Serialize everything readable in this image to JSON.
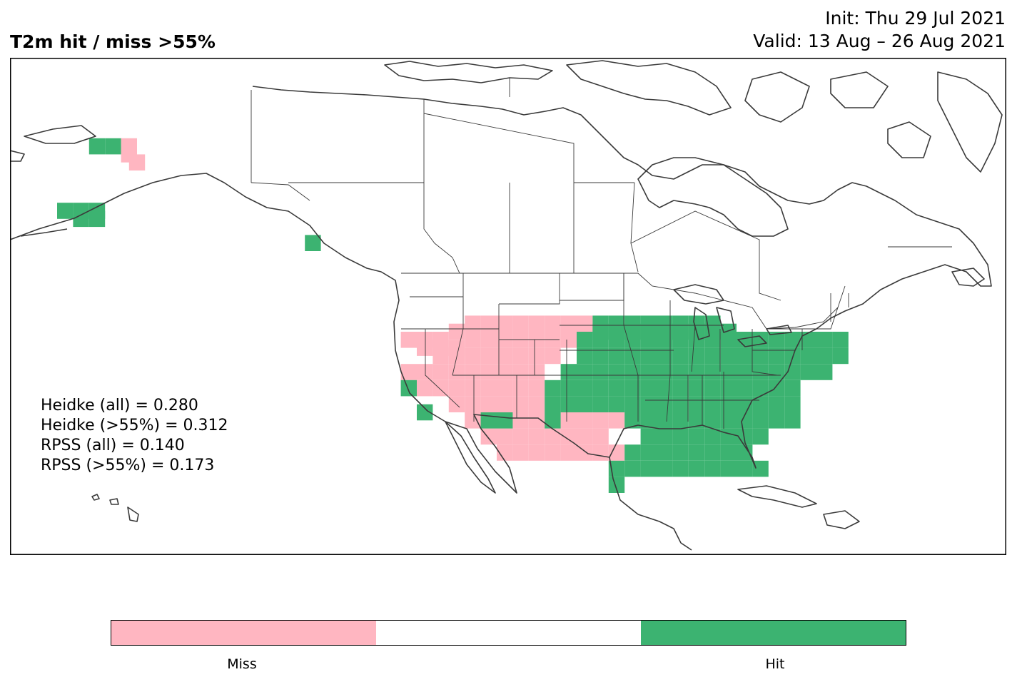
{
  "title": "T2m hit / miss  >55%",
  "init": "Init: Thu 29 Jul 2021",
  "valid": "Valid: 13 Aug – 26 Aug 2021",
  "stats": [
    "Heidke (all) = 0.280",
    "Heidke (>55%) = 0.312",
    "RPSS (all) = 0.140",
    "RPSS (>55%) = 0.173"
  ],
  "colorbar": {
    "segments": [
      {
        "label": "Miss",
        "color": "#ffb6c1"
      },
      {
        "label": "",
        "color": "#ffffff"
      },
      {
        "label": "Hit",
        "color": "#3cb371"
      }
    ]
  },
  "colors": {
    "miss": "#ffb6c1",
    "hit": "#3cb371",
    "coast": "#3a3a3a"
  },
  "grid_cells": {
    "miss": [
      [
        -158,
        70
      ],
      [
        -158,
        69
      ],
      [
        -157,
        68
      ],
      [
        -123,
        46
      ],
      [
        -121,
        46
      ],
      [
        -119,
        46
      ],
      [
        -117,
        47
      ],
      [
        -115,
        48
      ],
      [
        -113,
        48
      ],
      [
        -111,
        48
      ],
      [
        -109,
        48
      ],
      [
        -107,
        48
      ],
      [
        -105,
        48
      ],
      [
        -103,
        48
      ],
      [
        -101,
        48
      ],
      [
        -121,
        45
      ],
      [
        -119,
        45
      ],
      [
        -117,
        45
      ],
      [
        -115,
        46
      ],
      [
        -113,
        46
      ],
      [
        -111,
        46
      ],
      [
        -109,
        46
      ],
      [
        -107,
        46
      ],
      [
        -105,
        46
      ],
      [
        -103,
        46
      ],
      [
        -119,
        44
      ],
      [
        -117,
        44
      ],
      [
        -115,
        44
      ],
      [
        -113,
        44
      ],
      [
        -111,
        44
      ],
      [
        -109,
        44
      ],
      [
        -107,
        44
      ],
      [
        -105,
        44
      ],
      [
        -123,
        42
      ],
      [
        -121,
        42
      ],
      [
        -119,
        42
      ],
      [
        -117,
        42
      ],
      [
        -115,
        42
      ],
      [
        -113,
        42
      ],
      [
        -111,
        42
      ],
      [
        -109,
        42
      ],
      [
        -107,
        42
      ],
      [
        -121,
        40
      ],
      [
        -119,
        40
      ],
      [
        -117,
        40
      ],
      [
        -115,
        40
      ],
      [
        -113,
        40
      ],
      [
        -111,
        40
      ],
      [
        -109,
        40
      ],
      [
        -107,
        40
      ],
      [
        -117,
        38
      ],
      [
        -115,
        38
      ],
      [
        -113,
        38
      ],
      [
        -111,
        38
      ],
      [
        -109,
        38
      ],
      [
        -107,
        38
      ],
      [
        -115,
        36
      ],
      [
        -113,
        36
      ],
      [
        -111,
        36
      ],
      [
        -109,
        36
      ],
      [
        -107,
        36
      ],
      [
        -103,
        36
      ],
      [
        -101,
        36
      ],
      [
        -99,
        36
      ],
      [
        -97,
        36
      ],
      [
        -113,
        34
      ],
      [
        -111,
        34
      ],
      [
        -109,
        34
      ],
      [
        -107,
        34
      ],
      [
        -105,
        34
      ],
      [
        -103,
        34
      ],
      [
        -101,
        34
      ],
      [
        -99,
        34
      ],
      [
        -111,
        32
      ],
      [
        -109,
        32
      ],
      [
        -107,
        32
      ],
      [
        -105,
        32
      ],
      [
        -103,
        32
      ],
      [
        -101,
        32
      ],
      [
        -99,
        32
      ],
      [
        -97,
        32
      ]
    ],
    "hit": [
      [
        -162,
        70
      ],
      [
        -160,
        70
      ],
      [
        -166,
        62
      ],
      [
        -164,
        62
      ],
      [
        -162,
        62
      ],
      [
        -164,
        61
      ],
      [
        -162,
        61
      ],
      [
        -135,
        58
      ],
      [
        -99,
        48
      ],
      [
        -97,
        48
      ],
      [
        -95,
        48
      ],
      [
        -93,
        48
      ],
      [
        -91,
        48
      ],
      [
        -89,
        48
      ],
      [
        -87,
        48
      ],
      [
        -85,
        48
      ],
      [
        -99,
        47
      ],
      [
        -97,
        47
      ],
      [
        -95,
        47
      ],
      [
        -93,
        47
      ],
      [
        -91,
        47
      ],
      [
        -89,
        47
      ],
      [
        -87,
        47
      ],
      [
        -85,
        47
      ],
      [
        -83,
        47
      ],
      [
        -101,
        46
      ],
      [
        -99,
        46
      ],
      [
        -97,
        46
      ],
      [
        -95,
        46
      ],
      [
        -93,
        46
      ],
      [
        -91,
        46
      ],
      [
        -89,
        46
      ],
      [
        -87,
        46
      ],
      [
        -85,
        46
      ],
      [
        -83,
        46
      ],
      [
        -81,
        46
      ],
      [
        -79,
        46
      ],
      [
        -77,
        46
      ],
      [
        -75,
        46
      ],
      [
        -73,
        46
      ],
      [
        -71,
        46
      ],
      [
        -69,
        46
      ],
      [
        -101,
        44
      ],
      [
        -99,
        44
      ],
      [
        -97,
        44
      ],
      [
        -95,
        44
      ],
      [
        -93,
        44
      ],
      [
        -91,
        44
      ],
      [
        -89,
        44
      ],
      [
        -87,
        44
      ],
      [
        -85,
        44
      ],
      [
        -83,
        44
      ],
      [
        -81,
        44
      ],
      [
        -79,
        44
      ],
      [
        -77,
        44
      ],
      [
        -75,
        44
      ],
      [
        -73,
        44
      ],
      [
        -71,
        44
      ],
      [
        -69,
        44
      ],
      [
        -103,
        42
      ],
      [
        -101,
        42
      ],
      [
        -99,
        42
      ],
      [
        -97,
        42
      ],
      [
        -95,
        42
      ],
      [
        -93,
        42
      ],
      [
        -91,
        42
      ],
      [
        -89,
        42
      ],
      [
        -87,
        42
      ],
      [
        -85,
        42
      ],
      [
        -83,
        42
      ],
      [
        -81,
        42
      ],
      [
        -79,
        42
      ],
      [
        -77,
        42
      ],
      [
        -75,
        42
      ],
      [
        -73,
        42
      ],
      [
        -71,
        42
      ],
      [
        -105,
        40
      ],
      [
        -103,
        40
      ],
      [
        -101,
        40
      ],
      [
        -99,
        40
      ],
      [
        -97,
        40
      ],
      [
        -95,
        40
      ],
      [
        -93,
        40
      ],
      [
        -91,
        40
      ],
      [
        -89,
        40
      ],
      [
        -87,
        40
      ],
      [
        -85,
        40
      ],
      [
        -83,
        40
      ],
      [
        -81,
        40
      ],
      [
        -79,
        40
      ],
      [
        -77,
        40
      ],
      [
        -75,
        40
      ],
      [
        -123,
        40
      ],
      [
        -105,
        38
      ],
      [
        -103,
        38
      ],
      [
        -101,
        38
      ],
      [
        -99,
        38
      ],
      [
        -97,
        38
      ],
      [
        -95,
        38
      ],
      [
        -93,
        38
      ],
      [
        -91,
        38
      ],
      [
        -89,
        38
      ],
      [
        -87,
        38
      ],
      [
        -85,
        38
      ],
      [
        -83,
        38
      ],
      [
        -81,
        38
      ],
      [
        -79,
        38
      ],
      [
        -77,
        38
      ],
      [
        -75,
        38
      ],
      [
        -121,
        37
      ],
      [
        -113,
        36
      ],
      [
        -111,
        36
      ],
      [
        -105,
        36
      ],
      [
        -95,
        36
      ],
      [
        -93,
        36
      ],
      [
        -91,
        36
      ],
      [
        -89,
        36
      ],
      [
        -87,
        36
      ],
      [
        -85,
        36
      ],
      [
        -83,
        36
      ],
      [
        -81,
        36
      ],
      [
        -79,
        36
      ],
      [
        -77,
        36
      ],
      [
        -75,
        36
      ],
      [
        -93,
        34
      ],
      [
        -91,
        34
      ],
      [
        -89,
        34
      ],
      [
        -87,
        34
      ],
      [
        -85,
        34
      ],
      [
        -83,
        34
      ],
      [
        -81,
        34
      ],
      [
        -79,
        34
      ],
      [
        -95,
        32
      ],
      [
        -93,
        32
      ],
      [
        -91,
        32
      ],
      [
        -89,
        32
      ],
      [
        -87,
        32
      ],
      [
        -85,
        32
      ],
      [
        -83,
        32
      ],
      [
        -81,
        32
      ],
      [
        -97,
        30
      ],
      [
        -95,
        30
      ],
      [
        -93,
        30
      ],
      [
        -91,
        30
      ],
      [
        -89,
        30
      ],
      [
        -87,
        30
      ],
      [
        -85,
        30
      ],
      [
        -83,
        30
      ],
      [
        -81,
        30
      ],
      [
        -79,
        30
      ],
      [
        -97,
        28
      ]
    ]
  }
}
